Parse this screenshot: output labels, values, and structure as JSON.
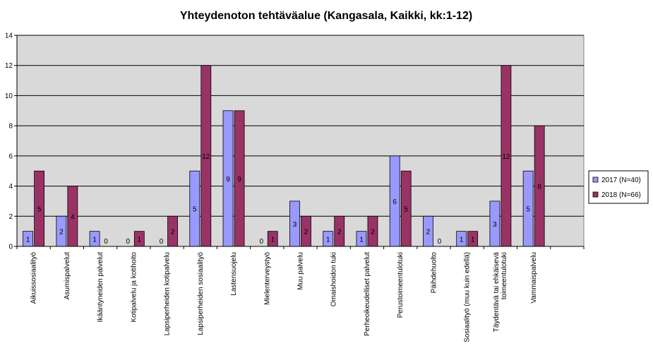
{
  "chart_data": {
    "type": "bar",
    "title": "Yhteydenoton tehtäväalue (Kangasala, Kaikki, kk:1-12)",
    "xlabel": "",
    "ylabel": "",
    "ylim": [
      0,
      14
    ],
    "ytick_step": 2,
    "grid": true,
    "legend_position": "right",
    "plot_background": "#d9d9d9",
    "categories": [
      "Aikuissosiaalityö",
      "Asumispalvelut",
      "Ikääntyneiden palvelut",
      "Kotipalvelu ja kotihoito",
      "Lapsiperheiden kotipalvelu",
      "Lapsiperheiden sosiaalityö",
      "Lastensuojelu",
      "Mielenterveystyö",
      "Muu palvelu",
      "Omaishoidon tuki",
      "Perheoikeudelliset palvelut",
      "Perustoimeentulotuki",
      "Päihdehuolto",
      "Sosiaalityö (muu kuin edellä)",
      "Täydentävä tai ehkäisevä toimeentulotuki",
      "Vammaispalvelu",
      ""
    ],
    "series": [
      {
        "name": "2017 (N=40)",
        "color": "#9999ff",
        "values": [
          1,
          2,
          1,
          0,
          0,
          5,
          9,
          0,
          3,
          1,
          1,
          6,
          2,
          1,
          3,
          5,
          null
        ]
      },
      {
        "name": "2018 (N=66)",
        "color": "#993366",
        "values": [
          5,
          4,
          0,
          1,
          2,
          12,
          9,
          1,
          2,
          2,
          2,
          5,
          0,
          1,
          12,
          8,
          null
        ]
      }
    ]
  }
}
